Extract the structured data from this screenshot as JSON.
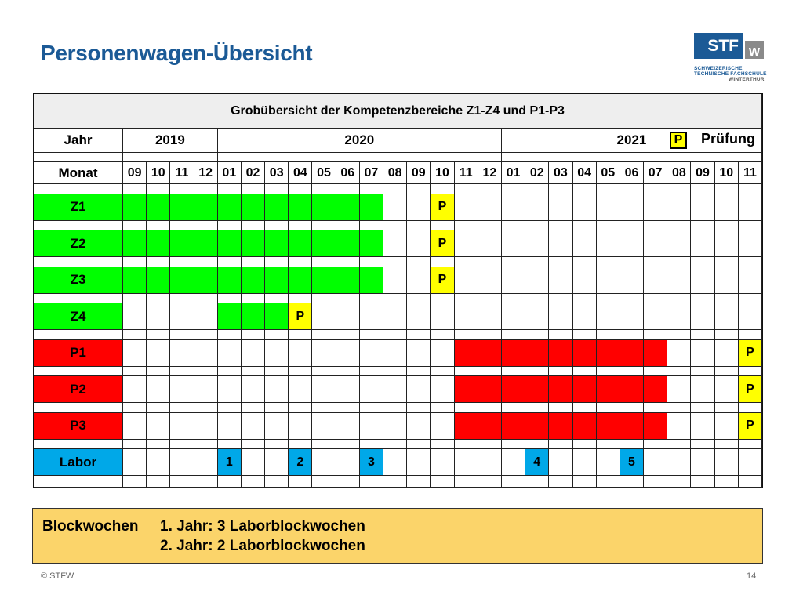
{
  "title": "Personenwagen-Übersicht",
  "logo": {
    "main": "STF",
    "letter": "w",
    "line1": "SCHWEIZERISCHE",
    "line2": "TECHNISCHE FACHSCHULE",
    "line3": "WINTERTHUR"
  },
  "table": {
    "heading": "Grobübersicht der Kompetenzbereiche Z1-Z4 und P1-P3",
    "year_label": "Jahr",
    "month_label": "Monat",
    "years": [
      {
        "label": "2019",
        "span": 4
      },
      {
        "label": "2020",
        "span": 12
      },
      {
        "label": "2021",
        "span": 11
      }
    ],
    "legend": {
      "marker": "P",
      "text": "Prüfung"
    },
    "months": [
      "09",
      "10",
      "11",
      "12",
      "01",
      "02",
      "03",
      "04",
      "05",
      "06",
      "07",
      "08",
      "09",
      "10",
      "11",
      "12",
      "01",
      "02",
      "03",
      "04",
      "05",
      "06",
      "07",
      "08",
      "09",
      "10",
      "11"
    ],
    "rows": [
      {
        "label": "Z1",
        "color": "#00ff00",
        "cells": [
          "g",
          "g",
          "g",
          "g",
          "g",
          "g",
          "g",
          "g",
          "g",
          "g",
          "g",
          "",
          "",
          "P",
          "",
          "",
          "",
          "",
          "",
          "",
          "",
          "",
          "",
          "",
          "",
          "",
          ""
        ]
      },
      {
        "label": "Z2",
        "color": "#00ff00",
        "cells": [
          "g",
          "g",
          "g",
          "g",
          "g",
          "g",
          "g",
          "g",
          "g",
          "g",
          "g",
          "",
          "",
          "P",
          "",
          "",
          "",
          "",
          "",
          "",
          "",
          "",
          "",
          "",
          "",
          "",
          ""
        ]
      },
      {
        "label": "Z3",
        "color": "#00ff00",
        "cells": [
          "g",
          "g",
          "g",
          "g",
          "g",
          "g",
          "g",
          "g",
          "g",
          "g",
          "g",
          "",
          "",
          "P",
          "",
          "",
          "",
          "",
          "",
          "",
          "",
          "",
          "",
          "",
          "",
          "",
          ""
        ]
      },
      {
        "label": "Z4",
        "color": "#00ff00",
        "cells": [
          "",
          "",
          "",
          "",
          "g",
          "g",
          "g",
          "P",
          "",
          "",
          "",
          "",
          "",
          "",
          "",
          "",
          "",
          "",
          "",
          "",
          "",
          "",
          "",
          "",
          "",
          "",
          ""
        ]
      },
      {
        "label": "P1",
        "color": "#ff0000",
        "cells": [
          "",
          "",
          "",
          "",
          "",
          "",
          "",
          "",
          "",
          "",
          "",
          "",
          "",
          "",
          "r",
          "r",
          "r",
          "r",
          "r",
          "r",
          "r",
          "r",
          "r",
          "",
          "",
          "",
          "P"
        ]
      },
      {
        "label": "P2",
        "color": "#ff0000",
        "cells": [
          "",
          "",
          "",
          "",
          "",
          "",
          "",
          "",
          "",
          "",
          "",
          "",
          "",
          "",
          "r",
          "r",
          "r",
          "r",
          "r",
          "r",
          "r",
          "r",
          "r",
          "",
          "",
          "",
          "P"
        ]
      },
      {
        "label": "P3",
        "color": "#ff0000",
        "cells": [
          "",
          "",
          "",
          "",
          "",
          "",
          "",
          "",
          "",
          "",
          "",
          "",
          "",
          "",
          "r",
          "r",
          "r",
          "r",
          "r",
          "r",
          "r",
          "r",
          "r",
          "",
          "",
          "",
          "P"
        ]
      },
      {
        "label": "Labor",
        "color": "#00a8e8",
        "cells": [
          "",
          "",
          "",
          "",
          "1",
          "",
          "",
          "2",
          "",
          "",
          "3",
          "",
          "",
          "",
          "",
          "",
          "",
          "4",
          "",
          "",
          "",
          "5",
          "",
          "",
          "",
          "",
          ""
        ]
      }
    ]
  },
  "block": {
    "title": "Blockwochen",
    "line1": "1. Jahr: 3 Laborblockwochen",
    "line2": "2. Jahr: 2 Laborblockwochen"
  },
  "footer": {
    "left": "© STFW",
    "right": "14"
  },
  "colors": {
    "green": "#00ff00",
    "red": "#ff0000",
    "yellow": "#ffff00",
    "blue": "#00a8e8",
    "title": "#1b5a96",
    "block": "#fbd46a"
  }
}
